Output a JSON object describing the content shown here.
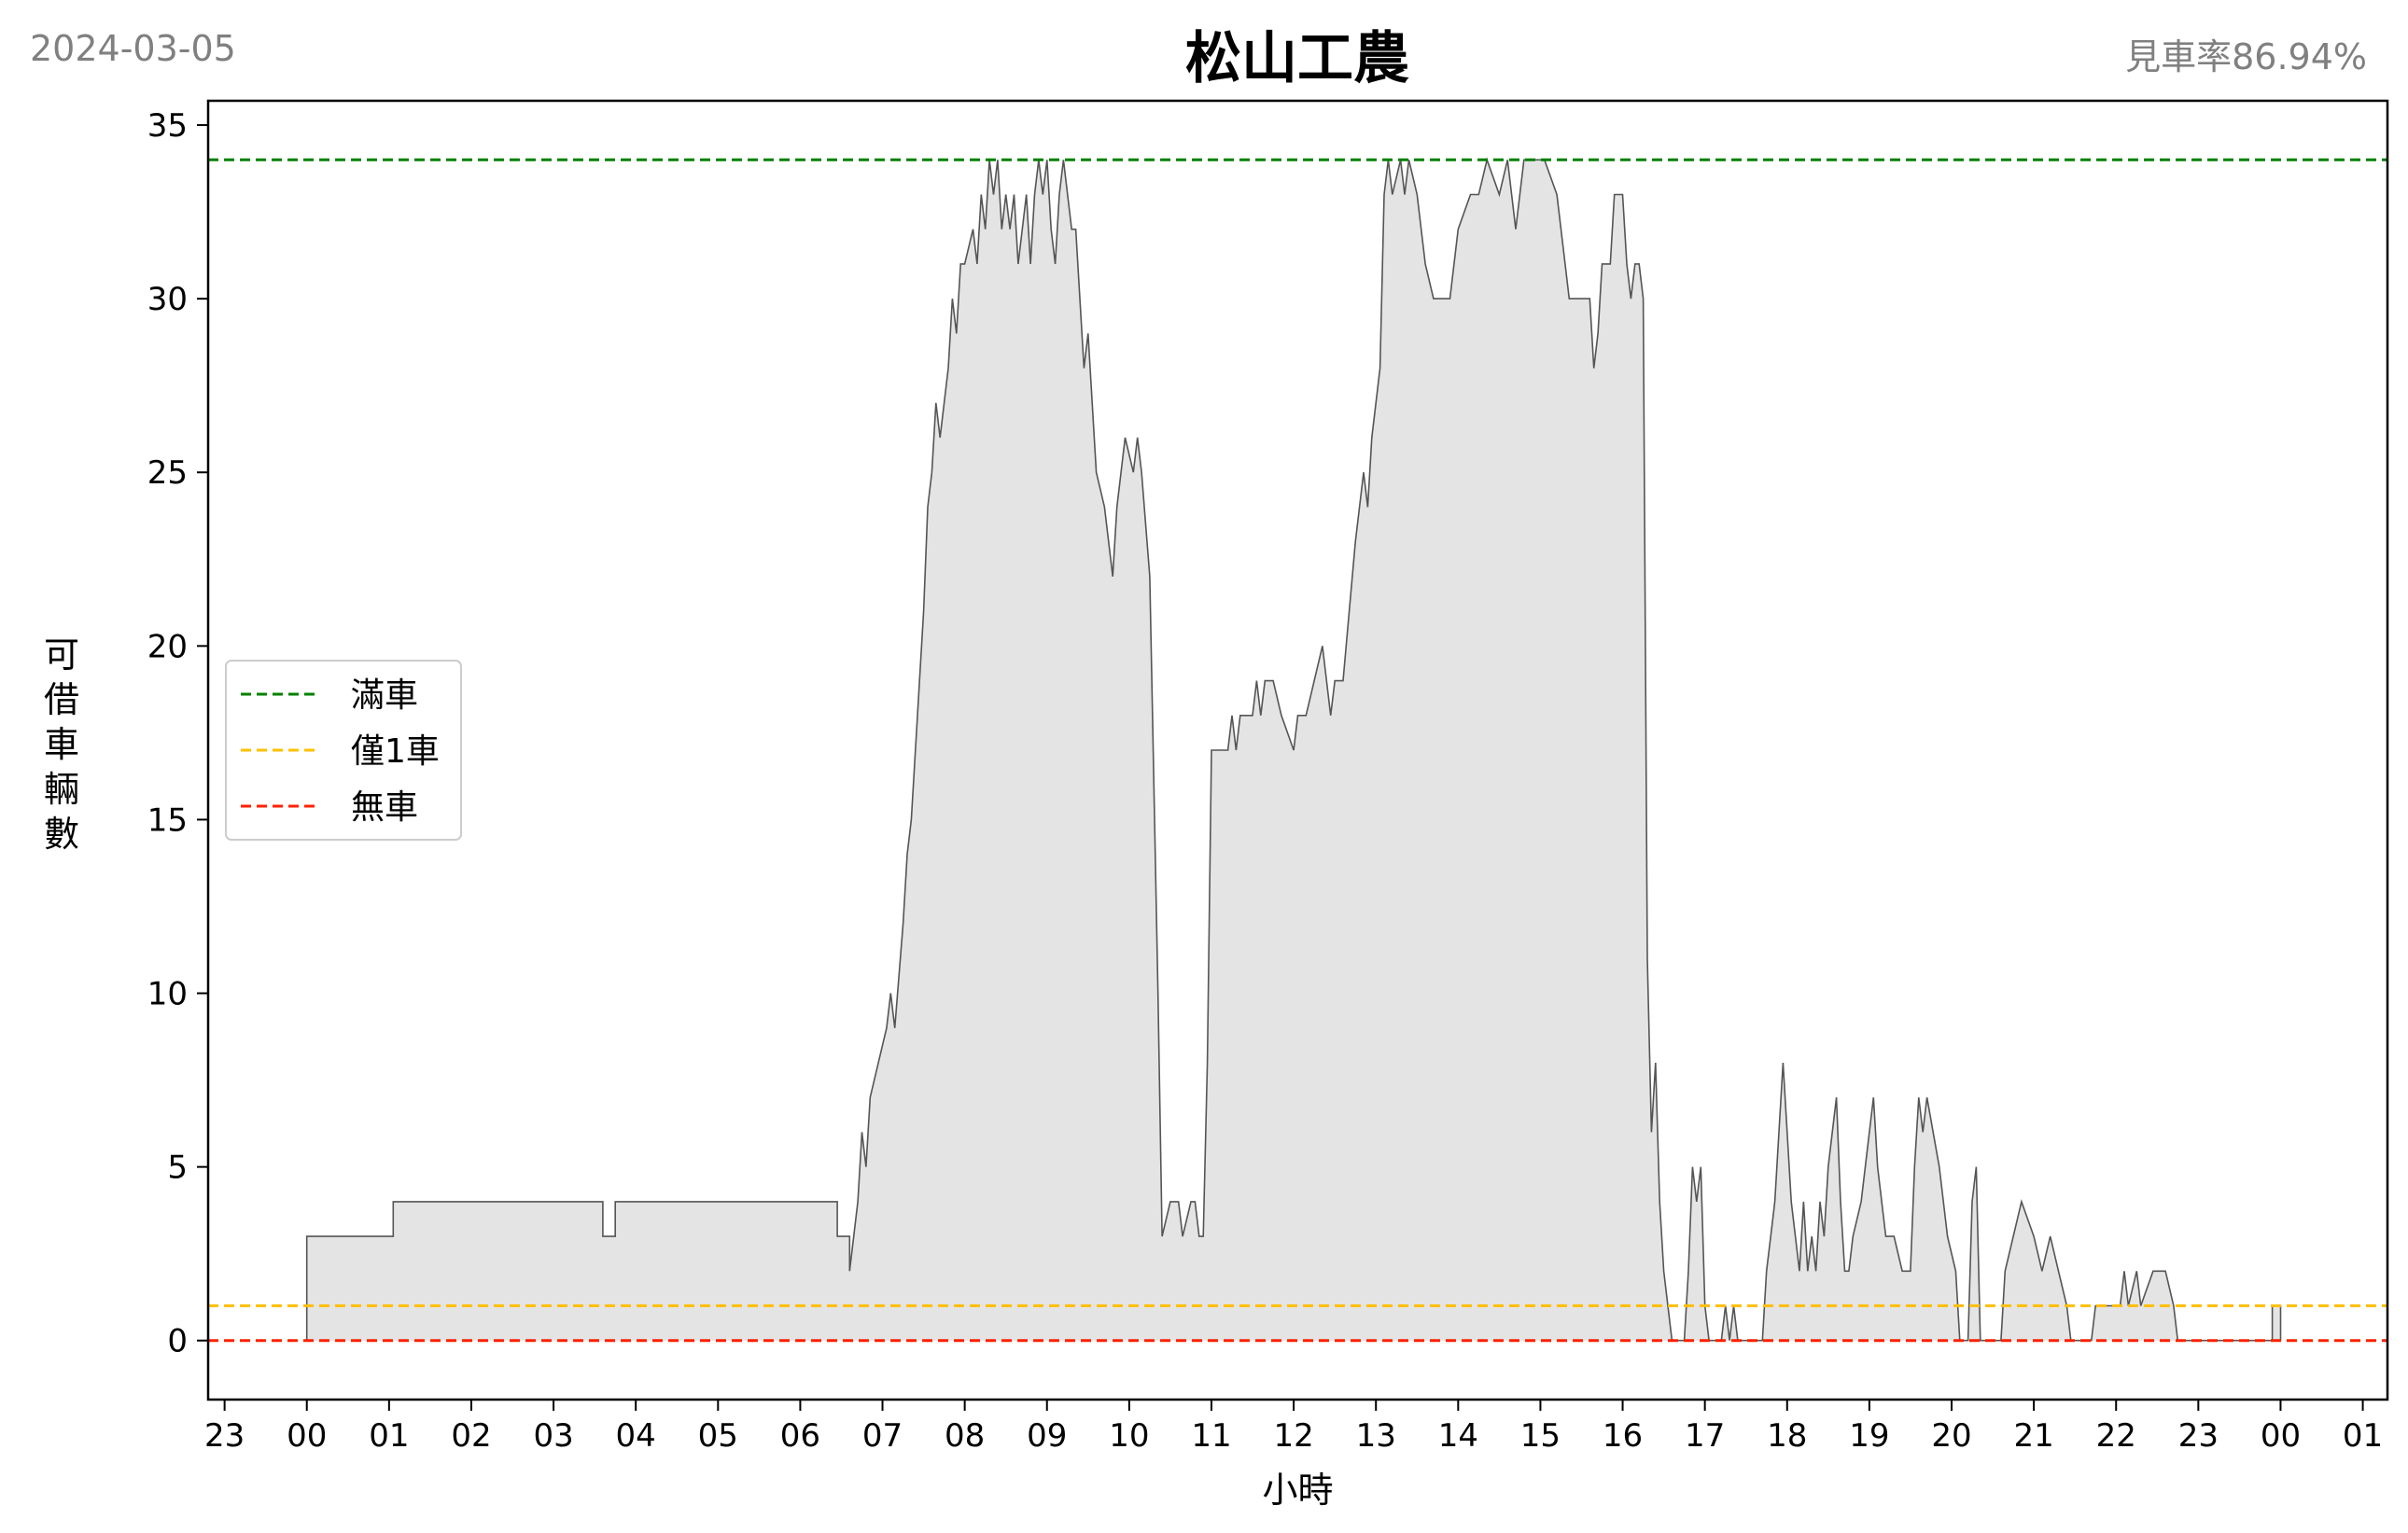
{
  "header": {
    "date": "2024-03-05",
    "title": "松山工農",
    "ratio": "見車率86.94%"
  },
  "chart_data": {
    "type": "area",
    "title": "松山工農",
    "xlabel": "小時",
    "ylabel": "可借車輛數",
    "ylim": [
      -1.7,
      35.7
    ],
    "xlim": [
      22.8,
      25.3
    ],
    "yticks": [
      0,
      5,
      10,
      15,
      20,
      25,
      30,
      35
    ],
    "xticks": [
      {
        "v": 23,
        "label": "23"
      },
      {
        "v": 24,
        "label": "00"
      },
      {
        "v": 25,
        "label": "01"
      },
      {
        "v": 26,
        "label": "02"
      },
      {
        "v": 27,
        "label": "03"
      },
      {
        "v": 28,
        "label": "04"
      },
      {
        "v": 29,
        "label": "05"
      },
      {
        "v": 30,
        "label": "06"
      },
      {
        "v": 31,
        "label": "07"
      },
      {
        "v": 32,
        "label": "08"
      },
      {
        "v": 33,
        "label": "09"
      },
      {
        "v": 34,
        "label": "10"
      },
      {
        "v": 35,
        "label": "11"
      },
      {
        "v": 36,
        "label": "12"
      },
      {
        "v": 37,
        "label": "13"
      },
      {
        "v": 38,
        "label": "14"
      },
      {
        "v": 39,
        "label": "15"
      },
      {
        "v": 40,
        "label": "16"
      },
      {
        "v": 41,
        "label": "17"
      },
      {
        "v": 42,
        "label": "18"
      },
      {
        "v": 43,
        "label": "19"
      },
      {
        "v": 44,
        "label": "20"
      },
      {
        "v": 45,
        "label": "21"
      },
      {
        "v": 46,
        "label": "22"
      },
      {
        "v": 47,
        "label": "23"
      },
      {
        "v": 48,
        "label": "00"
      },
      {
        "v": 49,
        "label": "01"
      }
    ],
    "xrange": [
      22.8,
      49.3
    ],
    "reference_lines": [
      {
        "name": "滿車",
        "value": 34,
        "color": "#008000"
      },
      {
        "name": "僅1車",
        "value": 1,
        "color": "#ffc000"
      },
      {
        "name": "無車",
        "value": 0,
        "color": "#ff2000"
      }
    ],
    "legend_position": "left-center",
    "fill_color": "#e4e4e4",
    "line_color": "#555555",
    "series": [
      {
        "points": [
          [
            24.0,
            0
          ],
          [
            24.0,
            3
          ],
          [
            25.05,
            3
          ],
          [
            25.05,
            4
          ],
          [
            27.6,
            4
          ],
          [
            27.6,
            3
          ],
          [
            27.75,
            3
          ],
          [
            27.75,
            4
          ],
          [
            30.45,
            4
          ],
          [
            30.45,
            3
          ],
          [
            30.6,
            3
          ],
          [
            30.6,
            2
          ],
          [
            30.65,
            3
          ],
          [
            30.7,
            4
          ],
          [
            30.75,
            6
          ],
          [
            30.8,
            5
          ],
          [
            30.85,
            7
          ],
          [
            30.95,
            8
          ],
          [
            31.05,
            9
          ],
          [
            31.1,
            10
          ],
          [
            31.15,
            9
          ],
          [
            31.25,
            12
          ],
          [
            31.3,
            14
          ],
          [
            31.35,
            15
          ],
          [
            31.4,
            17
          ],
          [
            31.45,
            19
          ],
          [
            31.5,
            21
          ],
          [
            31.55,
            24
          ],
          [
            31.6,
            25
          ],
          [
            31.65,
            27
          ],
          [
            31.7,
            26
          ],
          [
            31.75,
            27
          ],
          [
            31.8,
            28
          ],
          [
            31.85,
            30
          ],
          [
            31.9,
            29
          ],
          [
            31.95,
            31
          ],
          [
            32.0,
            31
          ],
          [
            32.1,
            32
          ],
          [
            32.15,
            31
          ],
          [
            32.2,
            33
          ],
          [
            32.25,
            32
          ],
          [
            32.3,
            34
          ],
          [
            32.35,
            33
          ],
          [
            32.4,
            34
          ],
          [
            32.45,
            32
          ],
          [
            32.5,
            33
          ],
          [
            32.55,
            32
          ],
          [
            32.6,
            33
          ],
          [
            32.65,
            31
          ],
          [
            32.7,
            32
          ],
          [
            32.75,
            33
          ],
          [
            32.8,
            31
          ],
          [
            32.85,
            33
          ],
          [
            32.9,
            34
          ],
          [
            32.95,
            33
          ],
          [
            33.0,
            34
          ],
          [
            33.05,
            32
          ],
          [
            33.1,
            31
          ],
          [
            33.15,
            33
          ],
          [
            33.2,
            34
          ],
          [
            33.25,
            33
          ],
          [
            33.3,
            32
          ],
          [
            33.35,
            32
          ],
          [
            33.4,
            30
          ],
          [
            33.45,
            28
          ],
          [
            33.5,
            29
          ],
          [
            33.55,
            27
          ],
          [
            33.6,
            25
          ],
          [
            33.7,
            24
          ],
          [
            33.75,
            23
          ],
          [
            33.8,
            22
          ],
          [
            33.85,
            24
          ],
          [
            33.9,
            25
          ],
          [
            33.95,
            26
          ],
          [
            34.05,
            25
          ],
          [
            34.1,
            26
          ],
          [
            34.15,
            25
          ],
          [
            34.25,
            22
          ],
          [
            34.3,
            16
          ],
          [
            34.35,
            10
          ],
          [
            34.4,
            3
          ],
          [
            34.5,
            4
          ],
          [
            34.6,
            4
          ],
          [
            34.65,
            3
          ],
          [
            34.75,
            4
          ],
          [
            34.8,
            4
          ],
          [
            34.85,
            3
          ],
          [
            34.9,
            3
          ],
          [
            34.95,
            8
          ],
          [
            35.0,
            17
          ],
          [
            35.2,
            17
          ],
          [
            35.25,
            18
          ],
          [
            35.3,
            17
          ],
          [
            35.35,
            18
          ],
          [
            35.5,
            18
          ],
          [
            35.55,
            19
          ],
          [
            35.6,
            18
          ],
          [
            35.65,
            19
          ],
          [
            35.75,
            19
          ],
          [
            35.85,
            18
          ],
          [
            36.0,
            17
          ],
          [
            36.05,
            18
          ],
          [
            36.15,
            18
          ],
          [
            36.25,
            19
          ],
          [
            36.35,
            20
          ],
          [
            36.45,
            18
          ],
          [
            36.5,
            19
          ],
          [
            36.6,
            19
          ],
          [
            36.75,
            23
          ],
          [
            36.85,
            25
          ],
          [
            36.9,
            24
          ],
          [
            36.95,
            26
          ],
          [
            37.05,
            28
          ],
          [
            37.1,
            33
          ],
          [
            37.15,
            34
          ],
          [
            37.2,
            33
          ],
          [
            37.3,
            34
          ],
          [
            37.35,
            33
          ],
          [
            37.4,
            34
          ],
          [
            37.5,
            33
          ],
          [
            37.6,
            31
          ],
          [
            37.7,
            30
          ],
          [
            37.9,
            30
          ],
          [
            38.0,
            32
          ],
          [
            38.15,
            33
          ],
          [
            38.25,
            33
          ],
          [
            38.35,
            34
          ],
          [
            38.5,
            33
          ],
          [
            38.6,
            34
          ],
          [
            38.7,
            32
          ],
          [
            38.8,
            34
          ],
          [
            39.0,
            34
          ],
          [
            39.05,
            34
          ],
          [
            39.2,
            33
          ],
          [
            39.3,
            31
          ],
          [
            39.35,
            30
          ],
          [
            39.5,
            30
          ],
          [
            39.6,
            30
          ],
          [
            39.65,
            28
          ],
          [
            39.7,
            29
          ],
          [
            39.75,
            31
          ],
          [
            39.85,
            31
          ],
          [
            39.9,
            33
          ],
          [
            40.0,
            33
          ],
          [
            40.05,
            31
          ],
          [
            40.1,
            30
          ],
          [
            40.15,
            31
          ],
          [
            40.2,
            31
          ],
          [
            40.25,
            30
          ],
          [
            40.3,
            11
          ],
          [
            40.35,
            6
          ],
          [
            40.4,
            8
          ],
          [
            40.45,
            4
          ],
          [
            40.5,
            2
          ],
          [
            40.55,
            1
          ],
          [
            40.6,
            0
          ],
          [
            40.75,
            0
          ],
          [
            40.8,
            2
          ],
          [
            40.85,
            5
          ],
          [
            40.9,
            4
          ],
          [
            40.95,
            5
          ],
          [
            41.0,
            1
          ],
          [
            41.05,
            0
          ],
          [
            41.2,
            0
          ],
          [
            41.25,
            1
          ],
          [
            41.3,
            0
          ],
          [
            41.35,
            1
          ],
          [
            41.4,
            0
          ],
          [
            41.7,
            0
          ],
          [
            41.75,
            2
          ],
          [
            41.8,
            3
          ],
          [
            41.85,
            4
          ],
          [
            41.9,
            6
          ],
          [
            41.95,
            8
          ],
          [
            42.0,
            6
          ],
          [
            42.05,
            4
          ],
          [
            42.1,
            3
          ],
          [
            42.15,
            2
          ],
          [
            42.2,
            4
          ],
          [
            42.25,
            2
          ],
          [
            42.3,
            3
          ],
          [
            42.35,
            2
          ],
          [
            42.4,
            4
          ],
          [
            42.45,
            3
          ],
          [
            42.5,
            5
          ],
          [
            42.55,
            6
          ],
          [
            42.6,
            7
          ],
          [
            42.65,
            4
          ],
          [
            42.7,
            2
          ],
          [
            42.75,
            2
          ],
          [
            42.8,
            3
          ],
          [
            42.9,
            4
          ],
          [
            42.95,
            5
          ],
          [
            43.0,
            6
          ],
          [
            43.05,
            7
          ],
          [
            43.1,
            5
          ],
          [
            43.15,
            4
          ],
          [
            43.2,
            3
          ],
          [
            43.3,
            3
          ],
          [
            43.4,
            2
          ],
          [
            43.5,
            2
          ],
          [
            43.55,
            5
          ],
          [
            43.6,
            7
          ],
          [
            43.65,
            6
          ],
          [
            43.7,
            7
          ],
          [
            43.85,
            5
          ],
          [
            43.95,
            3
          ],
          [
            44.05,
            2
          ],
          [
            44.1,
            0
          ],
          [
            44.2,
            0
          ],
          [
            44.25,
            4
          ],
          [
            44.3,
            5
          ],
          [
            44.35,
            0
          ],
          [
            44.6,
            0
          ],
          [
            44.65,
            2
          ],
          [
            44.75,
            3
          ],
          [
            44.85,
            4
          ],
          [
            45.0,
            3
          ],
          [
            45.1,
            2
          ],
          [
            45.2,
            3
          ],
          [
            45.3,
            2
          ],
          [
            45.4,
            1
          ],
          [
            45.45,
            0
          ],
          [
            45.7,
            0
          ],
          [
            45.75,
            1
          ],
          [
            46.05,
            1
          ],
          [
            46.1,
            2
          ],
          [
            46.15,
            1
          ],
          [
            46.25,
            2
          ],
          [
            46.3,
            1
          ],
          [
            46.45,
            2
          ],
          [
            46.6,
            2
          ],
          [
            46.7,
            1
          ],
          [
            46.75,
            0
          ],
          [
            47.0,
            0
          ],
          [
            47.5,
            0
          ],
          [
            47.9,
            0
          ],
          [
            47.9,
            1
          ],
          [
            48.0,
            1
          ],
          [
            48.0,
            0
          ]
        ]
      }
    ]
  }
}
